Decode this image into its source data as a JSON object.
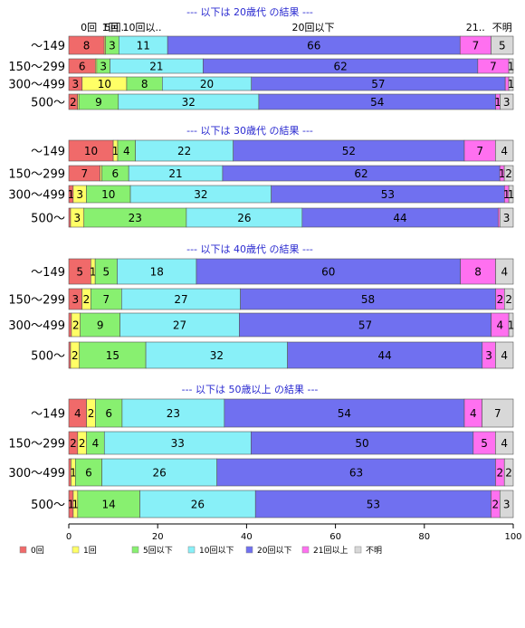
{
  "chart_data": {
    "type": "bar",
    "orientation": "horizontal",
    "stacked": true,
    "xlim": [
      0,
      100
    ],
    "xticks": [
      0,
      20,
      40,
      60,
      80,
      100
    ],
    "grid": false,
    "legend_position": "bottom",
    "colors": [
      "#f06a6a",
      "#ffff66",
      "#88f070",
      "#88f0f8",
      "#7070f0",
      "#ff70f0",
      "#d8d8d8"
    ],
    "series_names": [
      "0回",
      "1回",
      "5回以下",
      "10回以下",
      "20回以下",
      "21回以上",
      "不明"
    ],
    "top_labels": [
      {
        "text": "0回",
        "at": 4.5
      },
      {
        "text": "1回",
        "at": 9.3
      },
      {
        "text": "5回..",
        "at": 10.6
      },
      {
        "text": "10回以..",
        "at": 16.5
      },
      {
        "text": "20回以下",
        "at": 55
      },
      {
        "text": "21..",
        "at": 91.5
      },
      {
        "text": "不明",
        "at": 97.5
      }
    ],
    "panels": [
      {
        "title": "--- 以下は 20歳代 の結果 ---",
        "categories": [
          "～149",
          "150～299",
          "300～499",
          "500～"
        ],
        "rows": [
          [
            8,
            0.3,
            3,
            11,
            66,
            7,
            5
          ],
          [
            6,
            0.3,
            3,
            21,
            62,
            7,
            1
          ],
          [
            3,
            10,
            8,
            20,
            57,
            0.8,
            1
          ],
          [
            2,
            0.3,
            9,
            32,
            54,
            1,
            3
          ]
        ]
      },
      {
        "title": "--- 以下は 30歳代 の結果 ---",
        "categories": [
          "～149",
          "150～299",
          "300～499",
          "500～"
        ],
        "rows": [
          [
            10,
            1,
            4,
            22,
            52,
            7,
            4
          ],
          [
            7,
            0.4,
            6,
            21,
            62,
            1,
            2
          ],
          [
            1,
            3,
            10,
            32,
            53,
            1,
            1
          ],
          [
            0.4,
            3,
            23,
            26,
            44,
            0.4,
            3
          ]
        ]
      },
      {
        "title": "--- 以下は 40歳代 の結果 ---",
        "categories": [
          "～149",
          "150～299",
          "300～499",
          "500～"
        ],
        "rows": [
          [
            5,
            1,
            5,
            18,
            60,
            8,
            4
          ],
          [
            3,
            2,
            7,
            27,
            58,
            2,
            2
          ],
          [
            0.6,
            2,
            9,
            27,
            57,
            4,
            1
          ],
          [
            0.4,
            2,
            15,
            32,
            44,
            3,
            4
          ]
        ]
      },
      {
        "title": "--- 以下は 50歳以上 の結果 ---",
        "categories": [
          "～149",
          "150～299",
          "300～499",
          "500～"
        ],
        "rows": [
          [
            4,
            2,
            6,
            23,
            54,
            4,
            7
          ],
          [
            2,
            2,
            4,
            33,
            50,
            5,
            4
          ],
          [
            0.5,
            1,
            6,
            26,
            63,
            2,
            2
          ],
          [
            1,
            1,
            14,
            26,
            53,
            2,
            3
          ]
        ]
      }
    ]
  }
}
